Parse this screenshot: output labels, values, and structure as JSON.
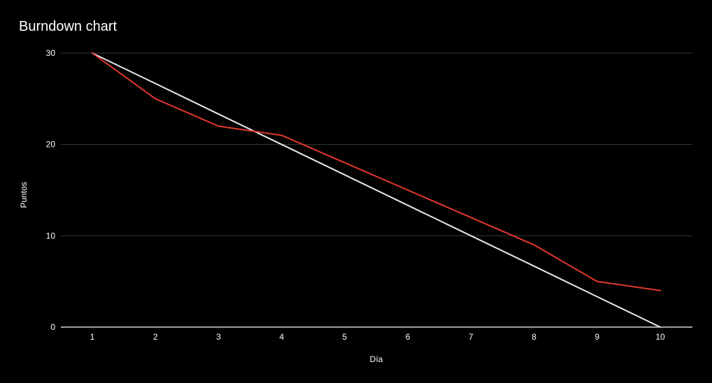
{
  "chart_data": {
    "type": "line",
    "title": "Burndown chart",
    "xlabel": "Día",
    "ylabel": "Puntos",
    "x": [
      1,
      2,
      3,
      4,
      5,
      6,
      7,
      8,
      9,
      10
    ],
    "xticks": [
      "1",
      "2",
      "3",
      "4",
      "5",
      "6",
      "7",
      "8",
      "9",
      "10"
    ],
    "yticks": [
      "0",
      "10",
      "20",
      "30"
    ],
    "ylim": [
      0,
      30
    ],
    "grid": true,
    "legend": "none",
    "series": [
      {
        "color": "#e8e8e8",
        "values": [
          30,
          26.67,
          23.33,
          20,
          16.67,
          13.33,
          10,
          6.67,
          3.33,
          0
        ]
      },
      {
        "color": "#e2382d",
        "values": [
          30,
          25,
          22,
          21,
          18,
          15,
          12,
          9,
          5,
          4
        ]
      }
    ],
    "colors": {
      "background": "#000000",
      "gridline": "#3a3a3a",
      "baseline": "#ffffff",
      "text": "#ffffff"
    }
  }
}
